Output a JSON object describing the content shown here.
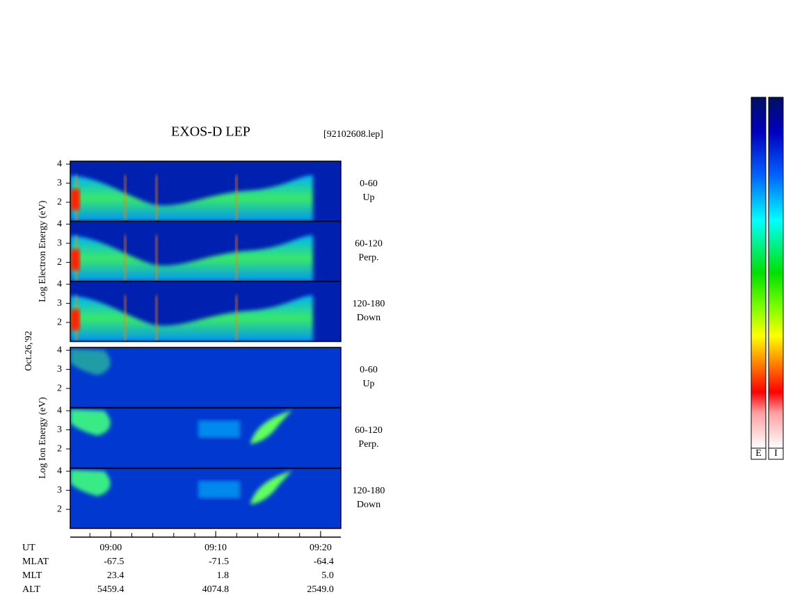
{
  "title": "EXOS-D LEP",
  "file": "[92102608.lep]",
  "date": "Oct.26,'92",
  "groups": [
    {
      "label": "Log Electron Energy (eV)",
      "panels": [
        {
          "range": "0-60",
          "dir": "Up"
        },
        {
          "range": "60-120",
          "dir": "Perp."
        },
        {
          "range": "120-180",
          "dir": "Down"
        }
      ]
    },
    {
      "label": "Log Ion Energy (eV)",
      "panels": [
        {
          "range": "0-60",
          "dir": "Up"
        },
        {
          "range": "60-120",
          "dir": "Perp."
        },
        {
          "range": "120-180",
          "dir": "Down"
        }
      ]
    }
  ],
  "ylim": [
    1,
    4.15
  ],
  "yticks": [
    2,
    3,
    4
  ],
  "xlim": [
    536.13,
    561.93
  ],
  "xticks": [
    {
      "value": 540,
      "label": "09:00"
    },
    {
      "value": 550,
      "label": "09:10"
    },
    {
      "value": 560,
      "label": "09:20"
    }
  ],
  "orbit": {
    "rows": [
      {
        "label": "UT"
      },
      {
        "label": "MLAT",
        "values": [
          "-67.5",
          "-71.5",
          "-64.4"
        ]
      },
      {
        "label": "MLT",
        "values": [
          "23.4",
          "1.8",
          "5.0"
        ]
      },
      {
        "label": "ALT",
        "values": [
          "5459.4",
          "4074.8",
          "2549.0"
        ]
      }
    ]
  },
  "colorbars": [
    "E",
    "I"
  ]
}
